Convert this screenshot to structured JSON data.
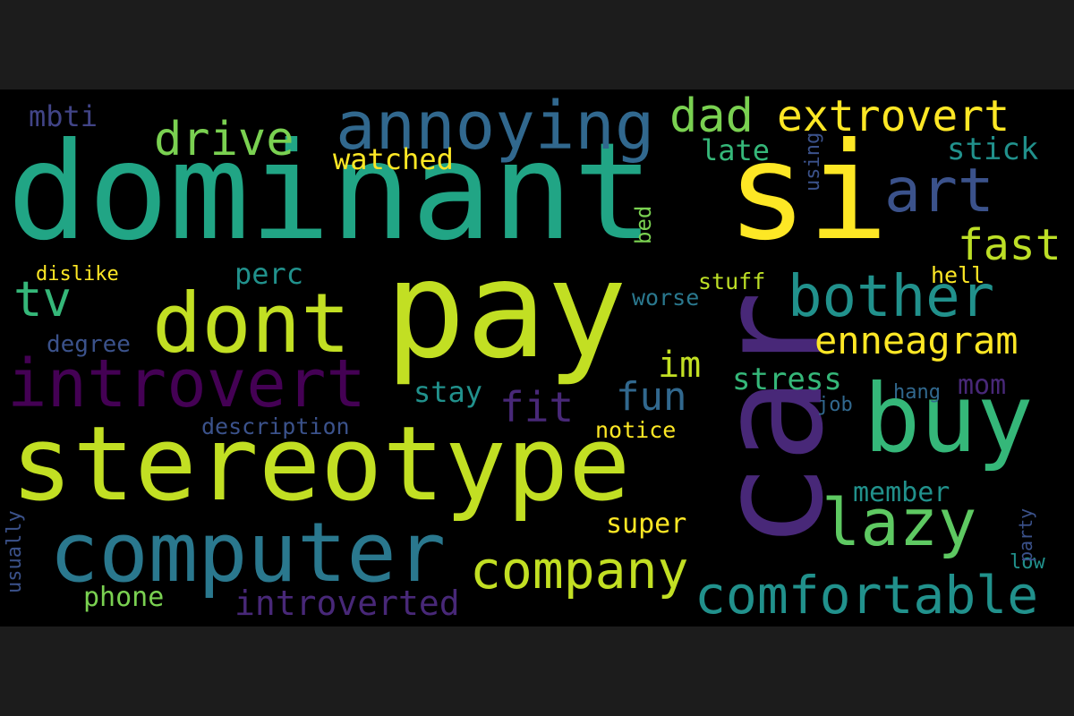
{
  "palette": {
    "page_background": "#1c1c1c",
    "cloud_background": "#000000"
  },
  "words": [
    {
      "text": "dominant",
      "color": "#21a585",
      "emphasis": 1.0,
      "orientation": "horizontal"
    },
    {
      "text": "si",
      "color": "#fde725",
      "emphasis": 0.98,
      "orientation": "horizontal"
    },
    {
      "text": "pay",
      "color": "#c2df23",
      "emphasis": 0.95,
      "orientation": "horizontal"
    },
    {
      "text": "car",
      "color": "#482878",
      "emphasis": 0.93,
      "orientation": "vertical"
    },
    {
      "text": "stereotype",
      "color": "#c2df23",
      "emphasis": 0.85,
      "orientation": "horizontal"
    },
    {
      "text": "buy",
      "color": "#35b779",
      "emphasis": 0.8,
      "orientation": "horizontal"
    },
    {
      "text": "dont",
      "color": "#c2df23",
      "emphasis": 0.7,
      "orientation": "horizontal"
    },
    {
      "text": "computer",
      "color": "#2a788e",
      "emphasis": 0.7,
      "orientation": "horizontal"
    },
    {
      "text": "annoying",
      "color": "#31688e",
      "emphasis": 0.55,
      "orientation": "horizontal"
    },
    {
      "text": "introvert",
      "color": "#440154",
      "emphasis": 0.55,
      "orientation": "horizontal"
    },
    {
      "text": "lazy",
      "color": "#5ec962",
      "emphasis": 0.55,
      "orientation": "horizontal"
    },
    {
      "text": "art",
      "color": "#3b528b",
      "emphasis": 0.5,
      "orientation": "horizontal"
    },
    {
      "text": "bother",
      "color": "#21918c",
      "emphasis": 0.5,
      "orientation": "horizontal"
    },
    {
      "text": "comfortable",
      "color": "#21918c",
      "emphasis": 0.45,
      "orientation": "horizontal"
    },
    {
      "text": "company",
      "color": "#c2df23",
      "emphasis": 0.45,
      "orientation": "horizontal"
    },
    {
      "text": "drive",
      "color": "#7ad151",
      "emphasis": 0.42,
      "orientation": "horizontal"
    },
    {
      "text": "dad",
      "color": "#7ad151",
      "emphasis": 0.42,
      "orientation": "horizontal"
    },
    {
      "text": "extrovert",
      "color": "#fde725",
      "emphasis": 0.4,
      "orientation": "horizontal"
    },
    {
      "text": "tv",
      "color": "#35b779",
      "emphasis": 0.4,
      "orientation": "horizontal"
    },
    {
      "text": "fast",
      "color": "#bddf26",
      "emphasis": 0.4,
      "orientation": "horizontal"
    },
    {
      "text": "enneagram",
      "color": "#fde725",
      "emphasis": 0.35,
      "orientation": "horizontal"
    },
    {
      "text": "fit",
      "color": "#482878",
      "emphasis": 0.35,
      "orientation": "horizontal"
    },
    {
      "text": "fun",
      "color": "#31688e",
      "emphasis": 0.35,
      "orientation": "horizontal"
    },
    {
      "text": "im",
      "color": "#c2df23",
      "emphasis": 0.32,
      "orientation": "horizontal"
    },
    {
      "text": "introverted",
      "color": "#482878",
      "emphasis": 0.3,
      "orientation": "horizontal"
    },
    {
      "text": "stress",
      "color": "#35b779",
      "emphasis": 0.28,
      "orientation": "horizontal"
    },
    {
      "text": "stick",
      "color": "#21918c",
      "emphasis": 0.28,
      "orientation": "horizontal"
    },
    {
      "text": "mbti",
      "color": "#414487",
      "emphasis": 0.26,
      "orientation": "horizontal"
    },
    {
      "text": "watched",
      "color": "#fde725",
      "emphasis": 0.26,
      "orientation": "horizontal"
    },
    {
      "text": "late",
      "color": "#35b779",
      "emphasis": 0.26,
      "orientation": "horizontal"
    },
    {
      "text": "perc",
      "color": "#21918c",
      "emphasis": 0.26,
      "orientation": "horizontal"
    },
    {
      "text": "stay",
      "color": "#21918c",
      "emphasis": 0.26,
      "orientation": "horizontal"
    },
    {
      "text": "mom",
      "color": "#482878",
      "emphasis": 0.26,
      "orientation": "horizontal"
    },
    {
      "text": "member",
      "color": "#21918c",
      "emphasis": 0.26,
      "orientation": "horizontal"
    },
    {
      "text": "super",
      "color": "#fde725",
      "emphasis": 0.26,
      "orientation": "horizontal"
    },
    {
      "text": "phone",
      "color": "#7ad151",
      "emphasis": 0.26,
      "orientation": "horizontal"
    },
    {
      "text": "degree",
      "color": "#3b528b",
      "emphasis": 0.22,
      "orientation": "horizontal"
    },
    {
      "text": "description",
      "color": "#3b528b",
      "emphasis": 0.2,
      "orientation": "horizontal"
    },
    {
      "text": "notice",
      "color": "#fde725",
      "emphasis": 0.2,
      "orientation": "horizontal"
    },
    {
      "text": "worse",
      "color": "#2a788e",
      "emphasis": 0.2,
      "orientation": "horizontal"
    },
    {
      "text": "stuff",
      "color": "#bddf26",
      "emphasis": 0.2,
      "orientation": "horizontal"
    },
    {
      "text": "hell",
      "color": "#fde725",
      "emphasis": 0.2,
      "orientation": "horizontal"
    },
    {
      "text": "hang",
      "color": "#31688e",
      "emphasis": 0.18,
      "orientation": "horizontal"
    },
    {
      "text": "job",
      "color": "#31688e",
      "emphasis": 0.18,
      "orientation": "horizontal"
    },
    {
      "text": "low",
      "color": "#21918c",
      "emphasis": 0.18,
      "orientation": "horizontal"
    },
    {
      "text": "dislike",
      "color": "#fde725",
      "emphasis": 0.18,
      "orientation": "horizontal"
    },
    {
      "text": "bed",
      "color": "#7ad151",
      "emphasis": 0.18,
      "orientation": "vertical"
    },
    {
      "text": "using",
      "color": "#3b528b",
      "emphasis": 0.15,
      "orientation": "vertical"
    },
    {
      "text": "party",
      "color": "#3b528b",
      "emphasis": 0.15,
      "orientation": "vertical"
    },
    {
      "text": "usually",
      "color": "#3b528b",
      "emphasis": 0.15,
      "orientation": "vertical"
    }
  ]
}
